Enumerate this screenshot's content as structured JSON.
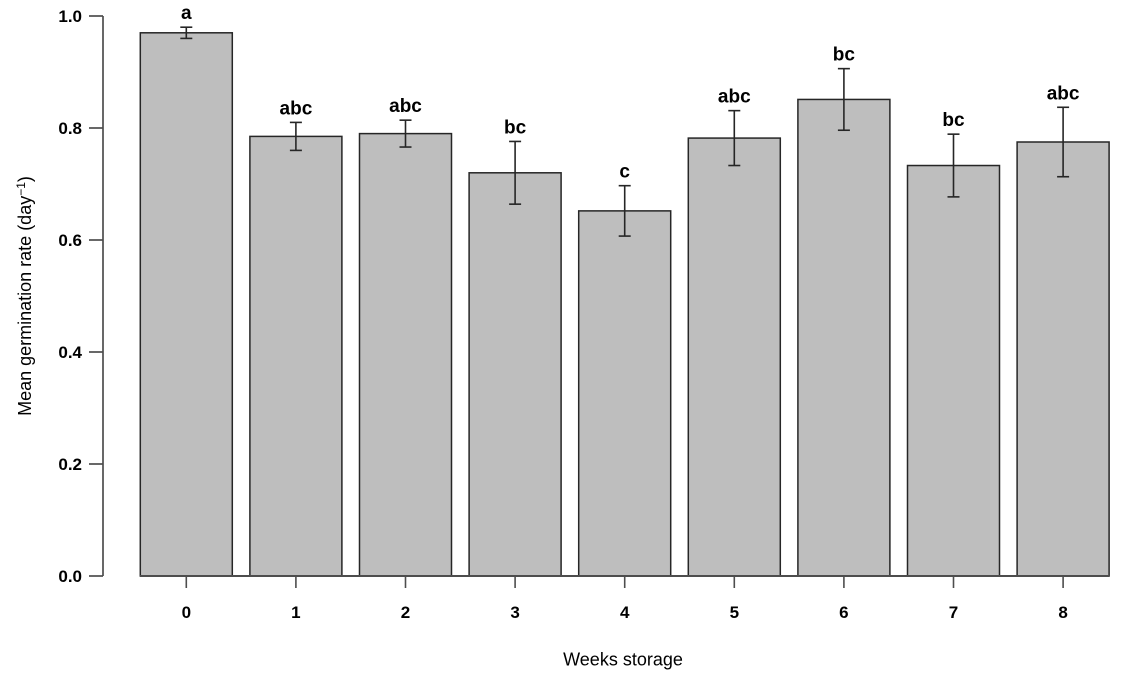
{
  "chart_data": {
    "type": "bar",
    "title": "",
    "xlabel": "Weeks storage",
    "ylabel": {
      "prefix": "Mean germination rate (day",
      "superscript": "−1",
      "suffix": ")"
    },
    "categories": [
      "0",
      "1",
      "2",
      "3",
      "4",
      "5",
      "6",
      "7",
      "8"
    ],
    "values": [
      0.97,
      0.785,
      0.79,
      0.72,
      0.652,
      0.782,
      0.851,
      0.733,
      0.775
    ],
    "errors": [
      0.01,
      0.025,
      0.024,
      0.056,
      0.045,
      0.049,
      0.055,
      0.056,
      0.062
    ],
    "significance_letters": [
      "a",
      "abc",
      "abc",
      "bc",
      "c",
      "abc",
      "bc",
      "bc",
      "abc"
    ],
    "yticks": [
      0.0,
      0.2,
      0.4,
      0.6,
      0.8,
      1.0
    ],
    "ytick_labels": [
      "0.0",
      "0.2",
      "0.4",
      "0.6",
      "0.8",
      "1.0"
    ],
    "ylim": [
      0.0,
      1.0
    ],
    "grid": false,
    "legend_position": "none",
    "colors": {
      "bar_fill": "#bebebe",
      "bar_border": "#262626",
      "error_bar": "#262626",
      "axis_line": "#4d4d4d",
      "text": "#000000",
      "background": "#ffffff"
    }
  }
}
